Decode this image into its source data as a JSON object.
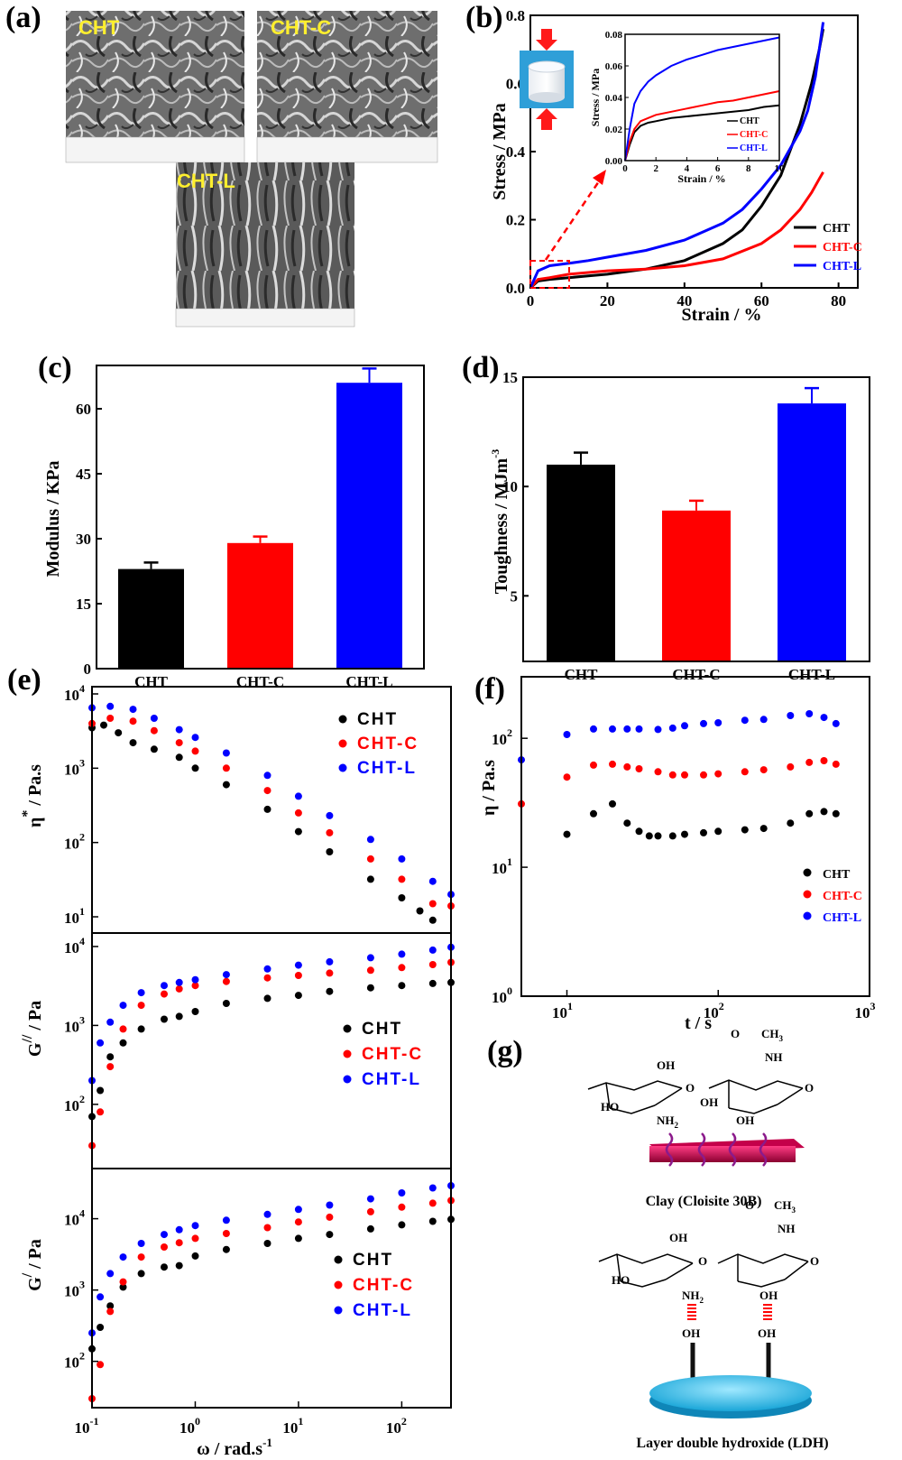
{
  "panel_labels": [
    "(a)",
    "(b)",
    "(c)",
    "(d)",
    "(e)",
    "(f)",
    "(g)"
  ],
  "colors": {
    "CHT": "#000000",
    "CHT-C": "#ff0000",
    "CHT-L": "#0000ff"
  },
  "sem": {
    "labels": [
      "CHT",
      "CHT-C",
      "CHT-L"
    ]
  },
  "chem": {
    "clay_label": "Clay (Cloisite 30B)",
    "ldh_label": "Layer double hydroxide (LDH)",
    "oh": "OH",
    "nh2": "NH",
    "nh": "NH",
    "sub2": "2",
    "ho": "HO",
    "o": "O",
    "ch3": "CH",
    "sub3": "3"
  },
  "chart_data": [
    {
      "panel": "b",
      "type": "line",
      "xlabel": "Strain / %",
      "ylabel": "Stress / MPa",
      "xlim": [
        0,
        85
      ],
      "ylim": [
        0,
        0.8
      ],
      "xticks": [
        0,
        20,
        40,
        60,
        80
      ],
      "yticks": [
        "0.0",
        "0.2",
        "0.4",
        "0.6",
        "0.8"
      ],
      "legend": "bottom-right",
      "series": [
        {
          "name": "CHT",
          "x": [
            0,
            2,
            5,
            10,
            15,
            20,
            30,
            40,
            50,
            55,
            60,
            65,
            70,
            73,
            75,
            76
          ],
          "y": [
            0,
            0.02,
            0.025,
            0.03,
            0.035,
            0.04,
            0.055,
            0.08,
            0.13,
            0.17,
            0.24,
            0.33,
            0.48,
            0.6,
            0.7,
            0.76
          ]
        },
        {
          "name": "CHT-C",
          "x": [
            0,
            2,
            5,
            10,
            20,
            30,
            40,
            50,
            60,
            65,
            70,
            73,
            75,
            76
          ],
          "y": [
            0,
            0.025,
            0.03,
            0.04,
            0.05,
            0.055,
            0.065,
            0.085,
            0.13,
            0.17,
            0.23,
            0.28,
            0.32,
            0.34
          ]
        },
        {
          "name": "CHT-L",
          "x": [
            0,
            2,
            5,
            10,
            15,
            20,
            30,
            40,
            50,
            55,
            60,
            65,
            70,
            72,
            74,
            75,
            76
          ],
          "y": [
            0,
            0.05,
            0.065,
            0.072,
            0.08,
            0.09,
            0.11,
            0.14,
            0.19,
            0.23,
            0.29,
            0.36,
            0.46,
            0.52,
            0.62,
            0.7,
            0.78
          ]
        }
      ],
      "inset": {
        "xlabel": "Strain / %",
        "ylabel": "Stress / MPa",
        "xlim": [
          0,
          10
        ],
        "ylim": [
          0,
          0.08
        ],
        "xticks": [
          0,
          2,
          4,
          6,
          8,
          10
        ],
        "yticks": [
          "0.00",
          "0.02",
          "0.04",
          "0.06",
          "0.08"
        ],
        "series": [
          {
            "name": "CHT",
            "x": [
              0,
              0.3,
              0.6,
              1,
              1.5,
              2,
              3,
              4,
              5,
              6,
              7,
              8,
              9,
              10
            ],
            "y": [
              0,
              0.01,
              0.018,
              0.022,
              0.024,
              0.025,
              0.027,
              0.028,
              0.029,
              0.03,
              0.031,
              0.032,
              0.034,
              0.035
            ]
          },
          {
            "name": "CHT-C",
            "x": [
              0,
              0.3,
              0.6,
              1,
              1.5,
              2,
              3,
              4,
              5,
              6,
              7,
              8,
              9,
              10
            ],
            "y": [
              0,
              0.012,
              0.02,
              0.025,
              0.027,
              0.029,
              0.031,
              0.033,
              0.035,
              0.037,
              0.038,
              0.04,
              0.042,
              0.044
            ]
          },
          {
            "name": "CHT-L",
            "x": [
              0,
              0.3,
              0.6,
              1,
              1.5,
              2,
              3,
              4,
              5,
              6,
              7,
              8,
              9,
              10
            ],
            "y": [
              0,
              0.02,
              0.036,
              0.044,
              0.05,
              0.054,
              0.06,
              0.064,
              0.067,
              0.07,
              0.072,
              0.074,
              0.076,
              0.078
            ]
          }
        ]
      }
    },
    {
      "panel": "c",
      "type": "bar",
      "ylabel": "Modulus / KPa",
      "ylim": [
        0,
        70
      ],
      "yticks": [
        0,
        15,
        30,
        45,
        60
      ],
      "categories": [
        "CHT",
        "CHT-C",
        "CHT-L"
      ],
      "values": [
        23,
        29,
        66
      ],
      "errors": [
        1.5,
        1.5,
        3.3
      ]
    },
    {
      "panel": "d",
      "type": "bar",
      "ylabel": "Toughness / MJm",
      "ylabel_sup": "-3",
      "ylim": [
        2,
        15
      ],
      "yticks": [
        5,
        10,
        15
      ],
      "categories": [
        "CHT",
        "CHT-C",
        "CHT-L"
      ],
      "values": [
        11,
        8.9,
        13.8
      ],
      "errors": [
        0.55,
        0.45,
        0.7
      ]
    },
    {
      "panel": "e",
      "type": "scatter",
      "xscale": "log",
      "yscale": "log",
      "xlabel": "ω / rad.s",
      "xlabel_sup": "-1",
      "xlim": [
        0.1,
        300
      ],
      "xticks": [
        "10",
        "10",
        "10",
        "10"
      ],
      "xtick_exps": [
        "-1",
        "0",
        "1",
        "2"
      ],
      "subplots": [
        {
          "ylabel": "η",
          "ylabel_sup": "*",
          "ylabel_tail": " / Pa.s",
          "ylim": [
            8,
            10000
          ],
          "yticks": [
            "10",
            "10",
            "10",
            "10"
          ],
          "ytick_exps": [
            "1",
            "2",
            "3",
            "4"
          ],
          "legend": [
            "CHT",
            "CHT-C",
            "CHT-L"
          ],
          "series": [
            {
              "name": "CHT",
              "x": [
                0.1,
                0.13,
                0.18,
                0.25,
                0.4,
                0.7,
                1,
                2,
                5,
                10,
                20,
                50,
                100,
                150,
                200
              ],
              "y": [
                3500,
                3800,
                3000,
                2200,
                1800,
                1400,
                1000,
                600,
                280,
                140,
                75,
                32,
                18,
                12,
                9
              ]
            },
            {
              "name": "CHT-C",
              "x": [
                0.1,
                0.15,
                0.25,
                0.4,
                0.7,
                1,
                2,
                5,
                10,
                20,
                50,
                100,
                200,
                300
              ],
              "y": [
                4000,
                4700,
                4300,
                3200,
                2200,
                1700,
                1000,
                500,
                250,
                135,
                60,
                32,
                15,
                14
              ]
            },
            {
              "name": "CHT-L",
              "x": [
                0.1,
                0.15,
                0.25,
                0.4,
                0.7,
                1,
                2,
                5,
                10,
                20,
                50,
                100,
                200,
                300
              ],
              "y": [
                6500,
                6800,
                6200,
                4700,
                3300,
                2600,
                1600,
                800,
                420,
                230,
                110,
                60,
                30,
                20
              ]
            }
          ]
        },
        {
          "ylabel": "G",
          "ylabel_sup": "//",
          "ylabel_tail": " / Pa",
          "ylim": [
            20,
            12000
          ],
          "yticks": [
            "10",
            "10",
            "10"
          ],
          "ytick_exps": [
            "2",
            "3",
            "4"
          ],
          "legend": [
            "CHT",
            "CHT-C",
            "CHT-L"
          ],
          "series": [
            {
              "name": "CHT",
              "x": [
                0.1,
                0.12,
                0.15,
                0.2,
                0.3,
                0.5,
                0.7,
                1,
                2,
                5,
                10,
                20,
                50,
                100,
                200,
                300
              ],
              "y": [
                70,
                150,
                400,
                600,
                900,
                1200,
                1300,
                1500,
                1900,
                2200,
                2400,
                2700,
                3000,
                3200,
                3400,
                3500
              ]
            },
            {
              "name": "CHT-C",
              "x": [
                0.1,
                0.12,
                0.15,
                0.2,
                0.3,
                0.5,
                0.7,
                1,
                2,
                5,
                10,
                20,
                50,
                100,
                200,
                300
              ],
              "y": [
                30,
                80,
                300,
                900,
                1800,
                2500,
                2900,
                3200,
                3600,
                4000,
                4300,
                4600,
                5000,
                5400,
                5900,
                6300
              ]
            },
            {
              "name": "CHT-L",
              "x": [
                0.1,
                0.12,
                0.15,
                0.2,
                0.3,
                0.5,
                0.7,
                1,
                2,
                5,
                10,
                20,
                50,
                100,
                200,
                300
              ],
              "y": [
                200,
                600,
                1100,
                1800,
                2600,
                3200,
                3500,
                3800,
                4400,
                5200,
                5800,
                6400,
                7200,
                8000,
                9000,
                9800
              ]
            }
          ]
        },
        {
          "ylabel": "G",
          "ylabel_sup": "/",
          "ylabel_tail": " / Pa",
          "ylim": [
            30,
            40000
          ],
          "yticks": [
            "10",
            "10",
            "10"
          ],
          "ytick_exps": [
            "2",
            "3",
            "4"
          ],
          "legend": [
            "CHT",
            "CHT-C",
            "CHT-L"
          ],
          "series": [
            {
              "name": "CHT",
              "x": [
                0.1,
                0.12,
                0.15,
                0.2,
                0.3,
                0.5,
                0.7,
                1,
                2,
                5,
                10,
                20,
                50,
                100,
                200,
                300
              ],
              "y": [
                150,
                300,
                600,
                1100,
                1700,
                2100,
                2200,
                3000,
                3700,
                4500,
                5300,
                6000,
                7200,
                8200,
                9200,
                9800
              ]
            },
            {
              "name": "CHT-C",
              "x": [
                0.1,
                0.12,
                0.15,
                0.2,
                0.3,
                0.5,
                0.7,
                1,
                2,
                5,
                10,
                20,
                50,
                100,
                200,
                300
              ],
              "y": [
                30,
                90,
                500,
                1300,
                2900,
                4000,
                4600,
                5300,
                6200,
                7500,
                9000,
                10500,
                12500,
                14500,
                16500,
                18000
              ]
            },
            {
              "name": "CHT-L",
              "x": [
                0.1,
                0.12,
                0.15,
                0.2,
                0.3,
                0.5,
                0.7,
                1,
                2,
                5,
                10,
                20,
                50,
                100,
                200,
                300
              ],
              "y": [
                250,
                800,
                1700,
                2900,
                4500,
                6000,
                7000,
                8000,
                9500,
                11500,
                13500,
                15500,
                19000,
                23000,
                27000,
                29000
              ]
            }
          ]
        }
      ]
    },
    {
      "panel": "f",
      "type": "scatter",
      "xscale": "log",
      "yscale": "log",
      "xlabel": "t / s",
      "ylabel": "η / Pa.s",
      "xlim": [
        5,
        1000
      ],
      "ylim": [
        1,
        300
      ],
      "xticks": [
        "10",
        "10",
        "10"
      ],
      "xtick_exps": [
        "1",
        "2",
        "3"
      ],
      "yticks": [
        "10",
        "10",
        "10"
      ],
      "ytick_exps": [
        "0",
        "1",
        "2"
      ],
      "legend": "bottom-right",
      "series": [
        {
          "name": "CHT",
          "x": [
            10,
            15,
            20,
            25,
            30,
            35,
            40,
            50,
            60,
            80,
            100,
            150,
            200,
            300,
            400,
            500,
            600
          ],
          "y": [
            18,
            26,
            31,
            22,
            19,
            17.5,
            17.5,
            17.5,
            18,
            18.5,
            19,
            19.5,
            20,
            22,
            26,
            27,
            26
          ]
        },
        {
          "name": "CHT-C",
          "x": [
            5,
            10,
            15,
            20,
            25,
            30,
            40,
            50,
            60,
            80,
            100,
            150,
            200,
            300,
            400,
            500,
            600
          ],
          "y": [
            31,
            50,
            62,
            63,
            60,
            58,
            55,
            52,
            52,
            52,
            53,
            55,
            57,
            60,
            65,
            67,
            63
          ]
        },
        {
          "name": "CHT-L",
          "x": [
            5,
            10,
            15,
            20,
            25,
            30,
            40,
            50,
            60,
            80,
            100,
            150,
            200,
            300,
            400,
            500,
            600
          ],
          "y": [
            68,
            107,
            118,
            118,
            118,
            118,
            117,
            120,
            125,
            130,
            132,
            138,
            140,
            150,
            155,
            145,
            130
          ]
        }
      ]
    }
  ]
}
